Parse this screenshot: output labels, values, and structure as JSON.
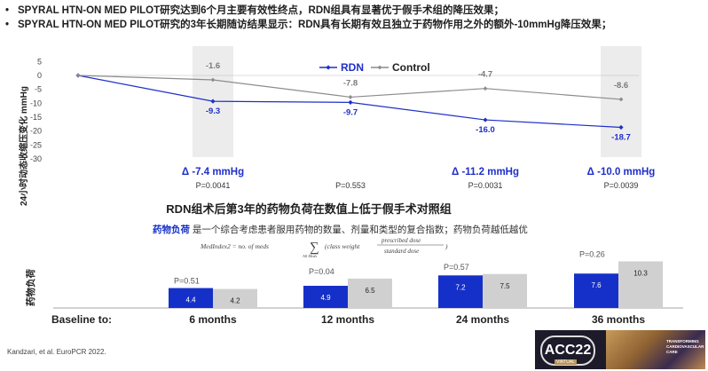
{
  "bullets": [
    "SPYRAL HTN-ON MED PILOT研究达到6个月主要有效性终点，RDN组具有显著优于假手术组的降压效果；",
    "SPYRAL HTN-ON MED PILOT研究的3年长期随访结果显示：RDN具有长期有效且独立于药物作用之外的额外-10mmHg降压效果；"
  ],
  "bullet_marker": "•",
  "chart_data": [
    {
      "type": "line",
      "ylabel": "24小时动态收缩压变化 mmHg",
      "ylim": [
        -30,
        5
      ],
      "yticks": [
        5,
        0,
        -5,
        -10,
        -15,
        -20,
        -25,
        -30
      ],
      "x": [
        "Baseline",
        "6 months",
        "12 months",
        "24 months",
        "36 months"
      ],
      "series": [
        {
          "name": "RDN",
          "values": [
            0,
            -9.3,
            -9.7,
            -16.0,
            -18.7
          ],
          "labels": [
            "",
            "-9.3",
            "-9.7",
            "-16.0",
            "-18.7"
          ],
          "color": "#1f2fc9"
        },
        {
          "name": "Control",
          "values": [
            0,
            -1.6,
            -7.8,
            -4.7,
            -8.6
          ],
          "labels": [
            "",
            "-1.6",
            "-7.8",
            "-4.7",
            "-8.6"
          ],
          "color": "#8c8c8c"
        }
      ],
      "highlighted_timepoints": [
        "6 months",
        "36 months"
      ],
      "deltas": [
        {
          "timepoint": "6 months",
          "delta": "Δ -7.4 mmHg",
          "p": "P=0.0041"
        },
        {
          "timepoint": "12 months",
          "delta": "",
          "p": "P=0.553"
        },
        {
          "timepoint": "24 months",
          "delta": "Δ -11.2 mmHg",
          "p": "P=0.0031"
        },
        {
          "timepoint": "36 months",
          "delta": "Δ -10.0 mmHg",
          "p": "P=0.0039"
        }
      ]
    },
    {
      "type": "bar",
      "title": "RDN组术后第3年的药物负荷在数值上低于假手术对照组",
      "ylabel": "药物负荷",
      "categories": [
        "6 months",
        "12 months",
        "24 months",
        "36 months"
      ],
      "series": [
        {
          "name": "RDN",
          "values": [
            4.4,
            4.9,
            7.2,
            7.6
          ],
          "color": "#1530c8"
        },
        {
          "name": "Control",
          "values": [
            4.2,
            6.5,
            7.5,
            10.3
          ],
          "color": "#d0d0d0"
        }
      ],
      "p_values": [
        "P=0.51",
        "P=0.04",
        "P=0.57",
        "P=0.26"
      ],
      "ylim": [
        0,
        12
      ],
      "baseline_label": "Baseline to:"
    }
  ],
  "definition": {
    "term": "药物负荷",
    "text": "是一个综合考虑患者服用药物的数量、剂量和类型的复合指数；药物负荷越低越优",
    "formula_lhs": "MedIndex2 = no. of meds",
    "formula_sum": "∑",
    "formula_sub": "All Meds",
    "formula_mid": "(class weight",
    "formula_num": "prescribed dose",
    "formula_den": "standard dose",
    "formula_end": ")"
  },
  "footer": "Kandzari, et al. EuroPCR 2022.",
  "logo": {
    "name": "ACC22",
    "badge": "VIRTUAL",
    "tagline": "TRANSFORMING CARDIOVASCULAR CARE"
  }
}
